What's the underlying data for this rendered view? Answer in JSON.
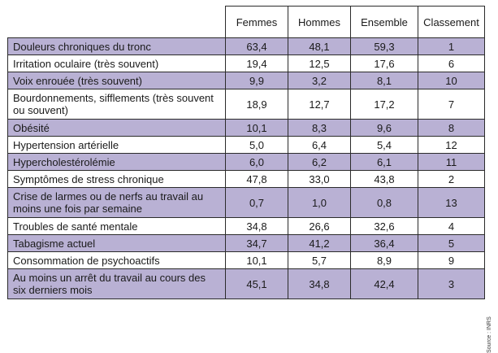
{
  "table": {
    "headers": [
      "",
      "Femmes",
      "Hommes",
      "Ensemble",
      "Classement"
    ],
    "rows": [
      {
        "label": "Douleurs chroniques du tronc",
        "femmes": "63,4",
        "hommes": "48,1",
        "ensemble": "59,3",
        "classement": "1"
      },
      {
        "label": "Irritation oculaire (très souvent)",
        "femmes": "19,4",
        "hommes": "12,5",
        "ensemble": "17,6",
        "classement": "6"
      },
      {
        "label": "Voix enrouée (très souvent)",
        "femmes": "9,9",
        "hommes": "3,2",
        "ensemble": "8,1",
        "classement": "10"
      },
      {
        "label": "Bourdonnements, sifflements (très souvent ou souvent)",
        "femmes": "18,9",
        "hommes": "12,7",
        "ensemble": "17,2",
        "classement": "7"
      },
      {
        "label": "Obésité",
        "femmes": "10,1",
        "hommes": "8,3",
        "ensemble": "9,6",
        "classement": "8"
      },
      {
        "label": "Hypertension artérielle",
        "femmes": "5,0",
        "hommes": "6,4",
        "ensemble": "5,4",
        "classement": "12"
      },
      {
        "label": "Hypercholestérolémie",
        "femmes": "6,0",
        "hommes": "6,2",
        "ensemble": "6,1",
        "classement": "11"
      },
      {
        "label": "Symptômes de stress chronique",
        "femmes": "47,8",
        "hommes": "33,0",
        "ensemble": "43,8",
        "classement": "2"
      },
      {
        "label": "Crise de larmes ou de nerfs au travail au moins une fois par semaine",
        "femmes": "0,7",
        "hommes": "1,0",
        "ensemble": "0,8",
        "classement": "13"
      },
      {
        "label": "Troubles de santé mentale",
        "femmes": "34,8",
        "hommes": "26,6",
        "ensemble": "32,6",
        "classement": "4"
      },
      {
        "label": "Tabagisme actuel",
        "femmes": "34,7",
        "hommes": "41,2",
        "ensemble": "36,4",
        "classement": "5"
      },
      {
        "label": "Consommation de psychoactifs",
        "femmes": "10,1",
        "hommes": "5,7",
        "ensemble": "8,9",
        "classement": "9"
      },
      {
        "label": "Au moins un arrêt du travail au cours des six derniers mois",
        "femmes": "45,1",
        "hommes": "34,8",
        "ensemble": "42,4",
        "classement": "3"
      }
    ]
  },
  "source": "Source : INRS"
}
